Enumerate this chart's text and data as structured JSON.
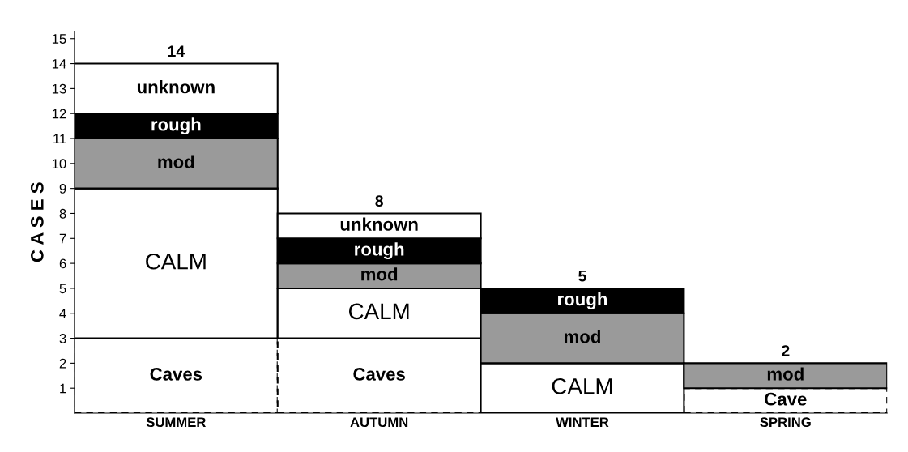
{
  "chart_data": {
    "type": "bar",
    "stacked": true,
    "ylabel": "C A S E S",
    "categories": [
      "SUMMER",
      "AUTUMN",
      "WINTER",
      "SPRING"
    ],
    "series": [
      {
        "color": "#ffffff",
        "values": [
          3,
          3,
          null,
          1
        ],
        "line_style": "dashed",
        "value_labels": [
          "Caves",
          "Caves",
          null,
          "Cave"
        ]
      },
      {
        "color": "#ffffff",
        "values": [
          6,
          2,
          2,
          null
        ],
        "value_labels": [
          "CALM",
          "CALM",
          "CALM",
          null
        ]
      },
      {
        "color": "#9a9a9a",
        "values": [
          2,
          1,
          2,
          1
        ],
        "value_labels": [
          "mod",
          "mod",
          "mod",
          "mod"
        ]
      },
      {
        "color": "#000000",
        "values": [
          1,
          1,
          1,
          null
        ],
        "value_labels": [
          "rough",
          "rough",
          "rough",
          null
        ]
      },
      {
        "color": "#ffffff",
        "values": [
          2,
          1,
          null,
          null
        ],
        "value_labels": [
          "unknown",
          "unknown",
          null,
          null
        ]
      }
    ],
    "totals": [
      "14",
      "8",
      "5",
      "2"
    ],
    "ylim": [
      0,
      15.3
    ],
    "yticks": [
      1,
      2,
      3,
      4,
      5,
      6,
      7,
      8,
      9,
      10,
      11,
      12,
      13,
      14,
      15
    ]
  }
}
